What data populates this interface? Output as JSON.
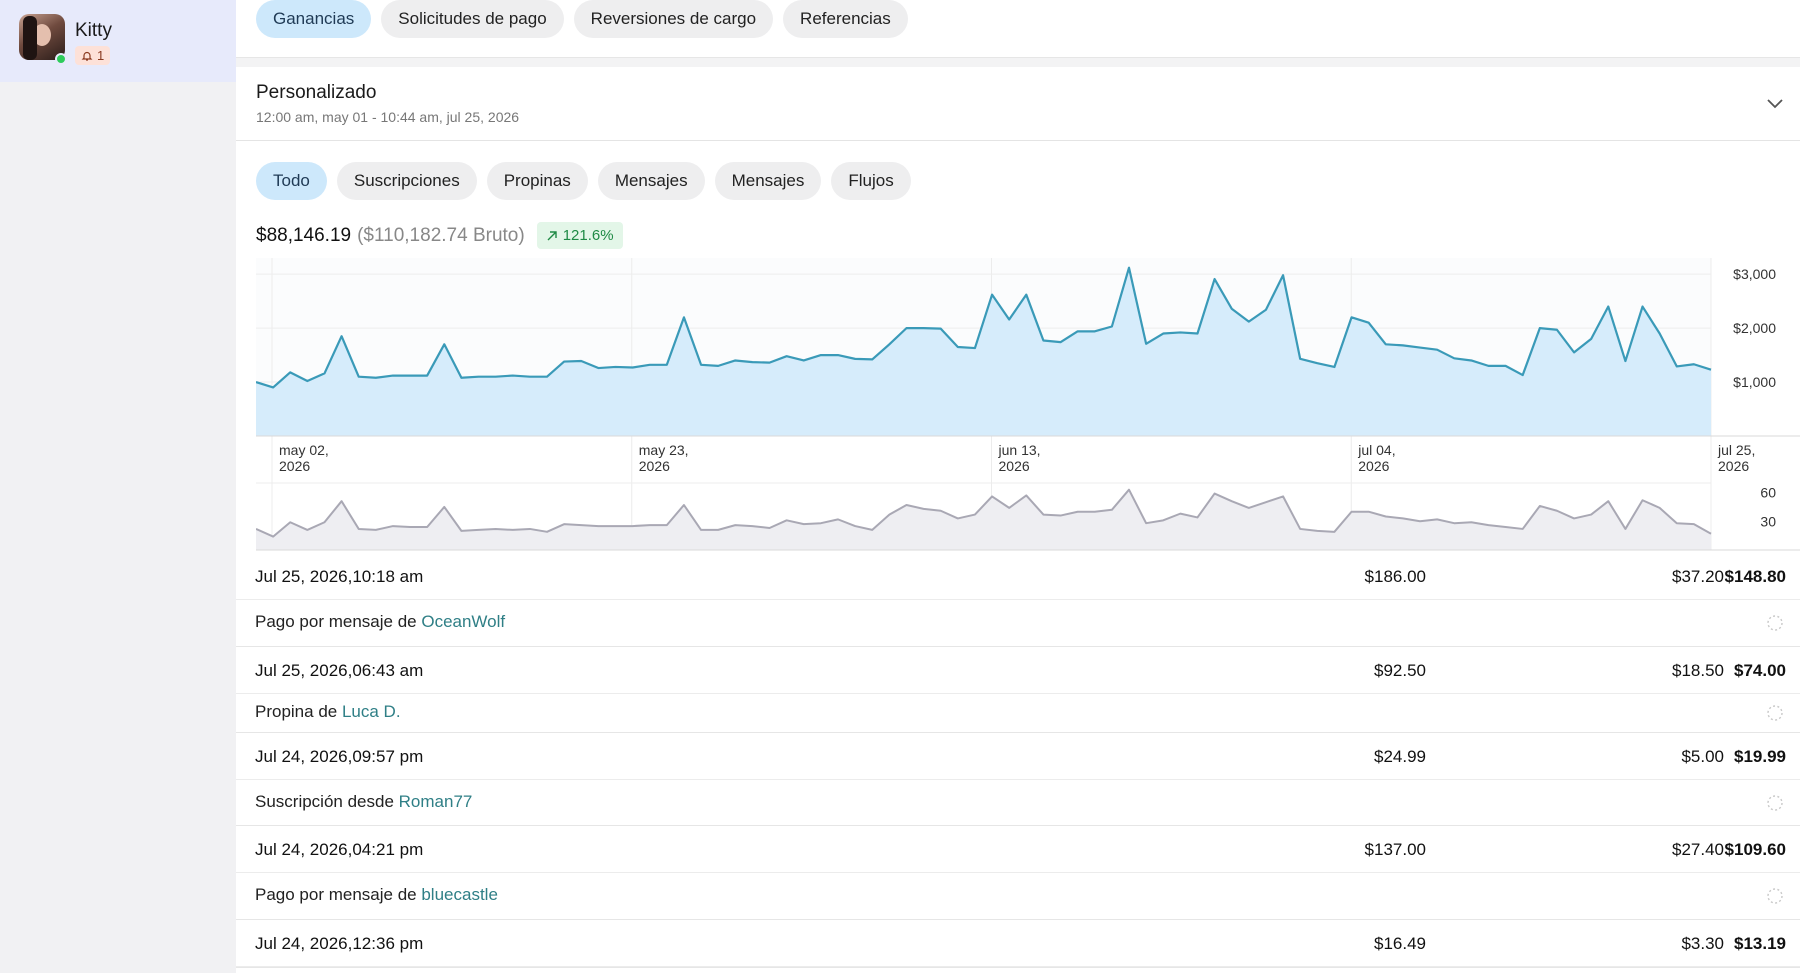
{
  "account": {
    "name": "Kitty",
    "notifications": "1"
  },
  "top_tabs": [
    "Ganancias",
    "Solicitudes de pago",
    "Reversiones de cargo",
    "Referencias"
  ],
  "period": {
    "title": "Personalizado",
    "range": "12:00 am, may 01 - 10:44 am, jul 25, 2026"
  },
  "filter_tabs": [
    "Todo",
    "Suscripciones",
    "Propinas",
    "Mensajes",
    "Mensajes",
    "Flujos"
  ],
  "totals": {
    "net": "$88,146.19",
    "gross": "($110,182.74 Bruto)",
    "growth": "121.6%"
  },
  "colors": {
    "accent_fill": "#d6ecfb",
    "accent_line": "#3a9ab8",
    "count_line": "#a9a8b4",
    "growth_green": "#1f8a45"
  },
  "chart_data": {
    "type": "area",
    "x_ticks": [
      "may 02, 2026",
      "may 23, 2026",
      "jun 13, 2026",
      "jul 04, 2026",
      "jul 25, 2026"
    ],
    "y_ticks": [
      "$3,000",
      "$2,000",
      "$1,000"
    ],
    "ylim": [
      0,
      3300
    ],
    "series": [
      {
        "values": [
          1000,
          900,
          1180,
          1020,
          1160,
          1850,
          1100,
          1080,
          1120,
          1120,
          1120,
          1700,
          1080,
          1100,
          1100,
          1120,
          1100,
          1100,
          1380,
          1390,
          1260,
          1280,
          1270,
          1320,
          1320,
          2200,
          1320,
          1300,
          1400,
          1370,
          1360,
          1480,
          1400,
          1500,
          1500,
          1430,
          1420,
          1700,
          2000,
          2000,
          1990,
          1650,
          1630,
          2620,
          2160,
          2620,
          1770,
          1740,
          1940,
          1940,
          2030,
          3120,
          1710,
          1900,
          1920,
          1900,
          2910,
          2360,
          2120,
          2340,
          2980,
          1430,
          1350,
          1280,
          2200,
          2100,
          1700,
          1680,
          1640,
          1600,
          1440,
          1400,
          1300,
          1300,
          1130,
          2000,
          1970,
          1550,
          1800,
          2400,
          1390,
          2400,
          1900,
          1290,
          1330,
          1230
        ]
      }
    ],
    "count_ticks": [
      "60",
      "30"
    ],
    "count_ylim": [
      0,
      70
    ],
    "count_series": [
      {
        "values": [
          22,
          14,
          29,
          21,
          29,
          51,
          22,
          21,
          25,
          24,
          24,
          45,
          20,
          21,
          22,
          21,
          22,
          19,
          27,
          26,
          25,
          25,
          25,
          26,
          26,
          47,
          21,
          21,
          26,
          25,
          23,
          31,
          27,
          28,
          32,
          25,
          21,
          37,
          47,
          43,
          41,
          33,
          37,
          56,
          44,
          57,
          37,
          36,
          40,
          40,
          42,
          63,
          28,
          31,
          38,
          34,
          59,
          51,
          44,
          50,
          56,
          22,
          20,
          19,
          40,
          40,
          35,
          33,
          30,
          32,
          28,
          29,
          26,
          24,
          22,
          46,
          41,
          33,
          37,
          51,
          22,
          52,
          44,
          28,
          27,
          17
        ]
      }
    ]
  },
  "transactions": [
    {
      "date": "Jul 25, 2026,10:18 am",
      "gross": "$186.00",
      "fee": "$37.20",
      "net": "$148.80",
      "desc": "Pago por mensaje de",
      "user": "OceanWolf"
    },
    {
      "date": "Jul 25, 2026,06:43 am",
      "gross": "$92.50",
      "fee": "$18.50",
      "net": "$74.00",
      "desc": "Propina de",
      "user": "Luca D."
    },
    {
      "date": "Jul 24, 2026,09:57 pm",
      "gross": "$24.99",
      "fee": "$5.00",
      "net": "$19.99",
      "desc": "Suscripción desde",
      "user": "Roman77"
    },
    {
      "date": "Jul 24, 2026,04:21 pm",
      "gross": "$137.00",
      "fee": "$27.40",
      "net": "$109.60",
      "desc": "Pago por mensaje de",
      "user": "bluecastle"
    },
    {
      "date": "Jul 24, 2026,12:36 pm",
      "gross": "$16.49",
      "fee": "$3.30",
      "net": "$13.19"
    }
  ]
}
